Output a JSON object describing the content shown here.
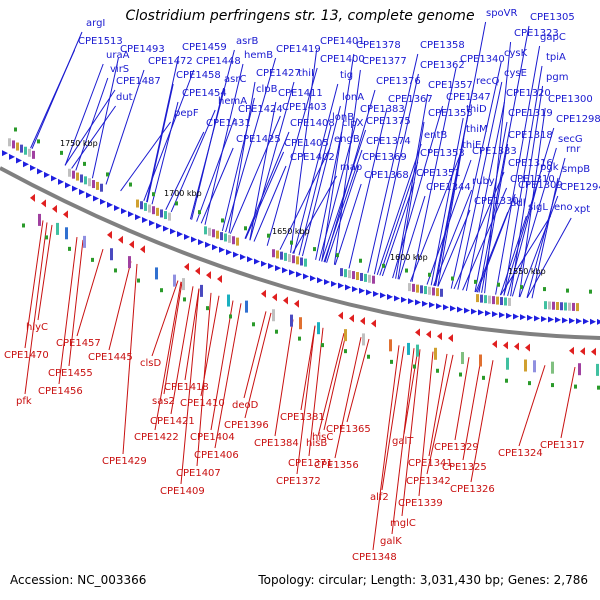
{
  "title": "Clostridium perfringens str. 13, complete genome",
  "footer": {
    "accession": "Accession: NC_003366",
    "info": "Topology: circular; Length: 3,031,430 bp; Genes: 2,786"
  },
  "colors": {
    "forward": "#1a1ad0",
    "reverse": "#c81010",
    "backbone": "#808080"
  },
  "kbp_labels": [
    "1750 kbp",
    "1700 kbp",
    "1650 kbp",
    "1600 kbp",
    "1550 kbp"
  ],
  "forward_labels": [
    "argI",
    "CPE1513",
    "uraA",
    "virS",
    "CPE1493",
    "CPE1487",
    "dut",
    "CPE1472",
    "CPE1459",
    "CPE1458",
    "CPE1448",
    "asrB",
    "hemB",
    "asrC",
    "CPE1454",
    "pepF",
    "hemA",
    "CPE1431",
    "clpB",
    "CPE1427",
    "CPE1419",
    "thiI",
    "CPE1424",
    "CPE1425",
    "CPE1411",
    "CPE1403",
    "CPE1408",
    "CPE1405",
    "CPE1402",
    "CPE1401",
    "CPE1400",
    "tig",
    "lonA",
    "lonB",
    "clpX",
    "engB",
    "map",
    "CPE1383",
    "CPE1378",
    "CPE1377",
    "CPE1376",
    "CPE1375",
    "CPE1374",
    "CPE1369",
    "CPE1368",
    "CPE1358",
    "CPE1362",
    "CPE1367",
    "CPE1357",
    "CPE1355",
    "CPE1347",
    "entB",
    "CPE1353",
    "CPE1351",
    "CPE1344",
    "spoVR",
    "CPE1340",
    "recQ",
    "thiD",
    "thiM",
    "thiE",
    "CPE1333",
    "ruby",
    "CPE1330",
    "CPE1323",
    "cysK",
    "cysE",
    "CPE1320",
    "CPE1319",
    "CPE1318",
    "CPE1316",
    "CPE1310",
    "CPE1309",
    "ddl",
    "sigL",
    "CPE1305",
    "gapC",
    "tpiA",
    "pgm",
    "CPE1300",
    "CPE1298",
    "secG",
    "rnr",
    "pgk",
    "smpB",
    "eno",
    "xpt",
    "CPE1294"
  ],
  "reverse_labels": [
    "hlyC",
    "CPE1470",
    "pfk",
    "CPE1457",
    "CPE1455",
    "CPE1456",
    "CPE1445",
    "clsD",
    "CPE1418",
    "sas2",
    "CPE1421",
    "CPE1422",
    "CPE1429",
    "CPE1410",
    "CPE1404",
    "CPE1406",
    "CPE1407",
    "CPE1409",
    "deoD",
    "CPE1396",
    "CPE1381",
    "CPE1384",
    "hisC",
    "hisB",
    "CPE1371",
    "CPE1372",
    "CPE1365",
    "CPE1356",
    "galT",
    "CPE1341",
    "alf2",
    "CPE1342",
    "CPE1339",
    "mglC",
    "galK",
    "CPE1348",
    "CPE1329",
    "CPE1325",
    "CPE1326",
    "CPE1324",
    "CPE1317"
  ]
}
